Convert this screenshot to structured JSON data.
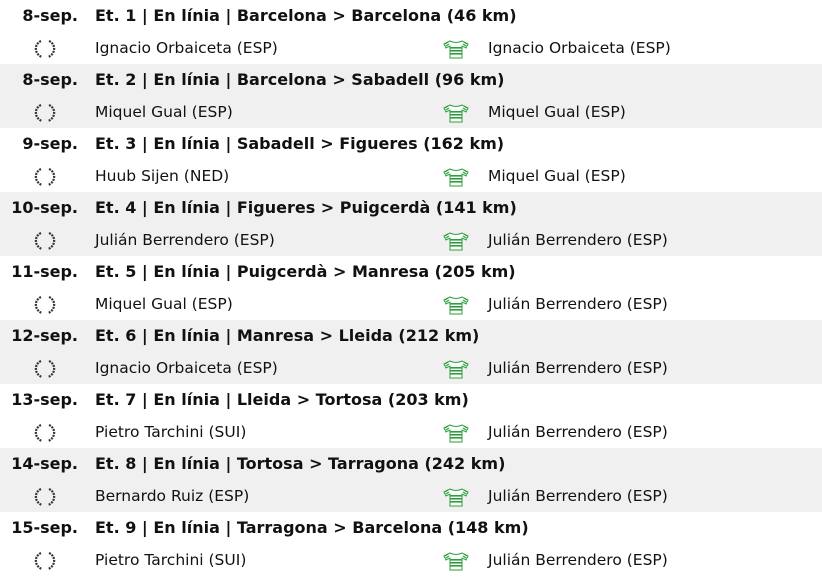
{
  "colors": {
    "jersey": "#2e9e3e",
    "laurel": "#333333",
    "alt_row": "#f0f0f0"
  },
  "icons": {
    "winner": "laurel-icon",
    "leader": "green-jersey-icon"
  },
  "stages": [
    {
      "date": "8-sep.",
      "title": "Et. 1 | En línia | Barcelona > Barcelona (46 km)",
      "winner": "Ignacio Orbaiceta (ESP)",
      "leader": "Ignacio Orbaiceta (ESP)"
    },
    {
      "date": "8-sep.",
      "title": "Et. 2 | En línia | Barcelona > Sabadell (96 km)",
      "winner": "Miquel Gual (ESP)",
      "leader": "Miquel Gual (ESP)"
    },
    {
      "date": "9-sep.",
      "title": "Et. 3 | En línia | Sabadell > Figueres (162 km)",
      "winner": "Huub Sijen (NED)",
      "leader": "Miquel Gual (ESP)"
    },
    {
      "date": "10-sep.",
      "title": "Et. 4 | En línia | Figueres > Puigcerdà (141 km)",
      "winner": "Julián Berrendero (ESP)",
      "leader": "Julián Berrendero (ESP)"
    },
    {
      "date": "11-sep.",
      "title": "Et. 5 | En línia | Puigcerdà > Manresa (205 km)",
      "winner": "Miquel Gual (ESP)",
      "leader": "Julián Berrendero (ESP)"
    },
    {
      "date": "12-sep.",
      "title": "Et. 6 | En línia | Manresa > Lleida (212 km)",
      "winner": "Ignacio Orbaiceta (ESP)",
      "leader": "Julián Berrendero (ESP)"
    },
    {
      "date": "13-sep.",
      "title": "Et. 7 | En línia | Lleida > Tortosa (203 km)",
      "winner": "Pietro Tarchini (SUI)",
      "leader": "Julián Berrendero (ESP)"
    },
    {
      "date": "14-sep.",
      "title": "Et. 8 | En línia | Tortosa > Tarragona (242 km)",
      "winner": "Bernardo Ruiz (ESP)",
      "leader": "Julián Berrendero (ESP)"
    },
    {
      "date": "15-sep.",
      "title": "Et. 9 | En línia | Tarragona > Barcelona (148 km)",
      "winner": "Pietro Tarchini (SUI)",
      "leader": "Julián Berrendero (ESP)"
    }
  ]
}
